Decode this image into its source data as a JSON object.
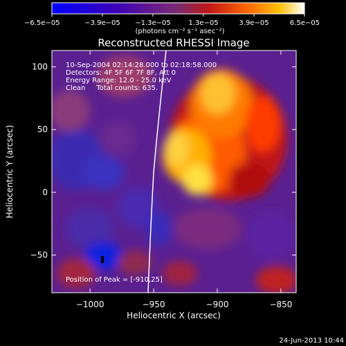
{
  "chart_data": {
    "type": "heatmap",
    "title": "Reconstructed RHESSI Image",
    "xlabel": "Heliocentric X (arcsec)",
    "ylabel": "Heliocentric Y (arcsec)",
    "xlim": [
      -1030,
      -838
    ],
    "ylim": [
      -80,
      113
    ],
    "x_ticks": [
      -1000,
      -950,
      -900,
      -850
    ],
    "x_tick_labels": [
      "−1000",
      "−950",
      "−900",
      "−850"
    ],
    "y_ticks": [
      100,
      50,
      0,
      -50
    ],
    "y_tick_labels": [
      "100",
      "50",
      "0",
      "−50"
    ],
    "colorbar": {
      "min": -6.5e-05,
      "max": 6.5e-05,
      "ticks": [
        -6.5e-05,
        -3.9e-05,
        -1.3e-05,
        1.3e-05,
        3.9e-05,
        6.5e-05
      ],
      "tick_labels": [
        "−6.5e−05",
        "−3.9e−05",
        "−1.3e−05",
        "1.3e−05",
        "3.9e−05",
        "6.5e−05"
      ],
      "units_label": "(photons cm⁻² s⁻¹ asec⁻²)"
    },
    "annotations": [
      "10-Sep-2004 02:14:28.000 to 02:18:58.000",
      "Detectors: 4F 5F 6F 7F 8F, Att 0",
      "Energy Range: 12.0 - 25.0 keV",
      "Clean     Total counts: 635."
    ],
    "peak_label": "Position of Peak = [-910,25]",
    "peak": [
      -910,
      25
    ],
    "grid": false,
    "limb_line": true
  },
  "footer": {
    "timestamp": "24-Jun-2013 10:44"
  }
}
